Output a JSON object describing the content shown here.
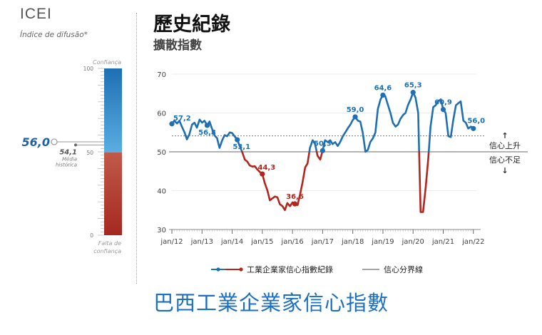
{
  "left_panel": {
    "title": "ICEI",
    "subtitle": "Índice de difusão*",
    "gauge": {
      "top_label": "Confiança",
      "bottom_label_1": "Falta de",
      "bottom_label_2": "confiança",
      "ticks": [
        "100",
        "50",
        "0"
      ],
      "current_value": 56.0,
      "current_label": "56,0",
      "historical_value": 54.1,
      "historical_label": "54,1",
      "historical_caption_1": "Média",
      "historical_caption_2": "histórica",
      "colors": {
        "high": "#1e6fb3",
        "high_light": "#5aaee0",
        "low": "#c05a4a",
        "low_dark": "#a52821"
      }
    }
  },
  "chart_title": "歷史紀錄",
  "chart_subtitle": "擴散指數",
  "bottom_caption": "巴西工業企業家信心指數",
  "chart_data": {
    "type": "line",
    "ylim": [
      30,
      70
    ],
    "yticks": [
      30,
      40,
      50,
      60,
      70
    ],
    "xlim": [
      2012.0,
      2022.1
    ],
    "xticks": [
      {
        "label": "jan/12",
        "x": 2012.0
      },
      {
        "label": "jan/13",
        "x": 2013.0
      },
      {
        "label": "jan/14",
        "x": 2014.0
      },
      {
        "label": "jan/15",
        "x": 2015.0
      },
      {
        "label": "jan/16",
        "x": 2016.0
      },
      {
        "label": "jan/17",
        "x": 2017.0
      },
      {
        "label": "jan/18",
        "x": 2018.0
      },
      {
        "label": "jan/19",
        "x": 2019.0
      },
      {
        "label": "jan/20",
        "x": 2020.0
      },
      {
        "label": "jan/21",
        "x": 2021.0
      },
      {
        "label": "jan/22",
        "x": 2022.0
      }
    ],
    "threshold": 50,
    "historical_average": 54.1,
    "above_label": "信心上升",
    "below_label": "信心不足",
    "series": [
      {
        "name": "工業企業家信心指數紀錄",
        "color_above": "#1e6fb3",
        "color_below": "#b3261e",
        "points": [
          [
            2012.0,
            57.2
          ],
          [
            2012.08,
            58.0
          ],
          [
            2012.17,
            57.3
          ],
          [
            2012.25,
            58.0
          ],
          [
            2012.33,
            56.5
          ],
          [
            2012.42,
            55.0
          ],
          [
            2012.5,
            53.2
          ],
          [
            2012.58,
            54.5
          ],
          [
            2012.67,
            57.0
          ],
          [
            2012.75,
            57.5
          ],
          [
            2012.83,
            56.2
          ],
          [
            2012.92,
            58.3
          ],
          [
            2013.0,
            57.5
          ],
          [
            2013.08,
            58.0
          ],
          [
            2013.17,
            56.8
          ],
          [
            2013.25,
            57.8
          ],
          [
            2013.33,
            56.0
          ],
          [
            2013.42,
            54.2
          ],
          [
            2013.5,
            53.5
          ],
          [
            2013.58,
            51.0
          ],
          [
            2013.67,
            53.0
          ],
          [
            2013.75,
            54.3
          ],
          [
            2013.83,
            54.0
          ],
          [
            2013.92,
            55.0
          ],
          [
            2014.0,
            54.8
          ],
          [
            2014.08,
            54.0
          ],
          [
            2014.17,
            53.1
          ],
          [
            2014.25,
            51.5
          ],
          [
            2014.33,
            50.0
          ],
          [
            2014.42,
            48.0
          ],
          [
            2014.5,
            47.5
          ],
          [
            2014.58,
            46.5
          ],
          [
            2014.67,
            46.2
          ],
          [
            2014.75,
            46.3
          ],
          [
            2014.83,
            45.5
          ],
          [
            2014.92,
            44.8
          ],
          [
            2015.0,
            44.3
          ],
          [
            2015.08,
            42.0
          ],
          [
            2015.17,
            40.0
          ],
          [
            2015.25,
            37.5
          ],
          [
            2015.33,
            38.0
          ],
          [
            2015.42,
            38.5
          ],
          [
            2015.5,
            38.3
          ],
          [
            2015.58,
            36.5
          ],
          [
            2015.67,
            36.0
          ],
          [
            2015.75,
            35.0
          ],
          [
            2015.83,
            36.8
          ],
          [
            2015.92,
            36.0
          ],
          [
            2016.0,
            37.0
          ],
          [
            2016.08,
            36.6
          ],
          [
            2016.17,
            36.3
          ],
          [
            2016.25,
            39.0
          ],
          [
            2016.33,
            42.0
          ],
          [
            2016.42,
            46.0
          ],
          [
            2016.5,
            47.0
          ],
          [
            2016.58,
            51.0
          ],
          [
            2016.67,
            53.0
          ],
          [
            2016.75,
            52.0
          ],
          [
            2016.83,
            49.0
          ],
          [
            2016.92,
            48.0
          ],
          [
            2017.0,
            50.3
          ],
          [
            2017.08,
            53.0
          ],
          [
            2017.17,
            52.5
          ],
          [
            2017.25,
            53.0
          ],
          [
            2017.33,
            52.0
          ],
          [
            2017.42,
            52.5
          ],
          [
            2017.5,
            51.5
          ],
          [
            2017.58,
            52.5
          ],
          [
            2017.67,
            54.0
          ],
          [
            2017.75,
            55.0
          ],
          [
            2017.83,
            56.0
          ],
          [
            2017.92,
            57.0
          ],
          [
            2018.0,
            58.2
          ],
          [
            2018.08,
            59.0
          ],
          [
            2018.17,
            58.0
          ],
          [
            2018.25,
            57.8
          ],
          [
            2018.33,
            55.0
          ],
          [
            2018.42,
            50.0
          ],
          [
            2018.5,
            50.5
          ],
          [
            2018.58,
            52.5
          ],
          [
            2018.67,
            53.5
          ],
          [
            2018.75,
            55.0
          ],
          [
            2018.83,
            61.0
          ],
          [
            2018.92,
            63.5
          ],
          [
            2019.0,
            64.6
          ],
          [
            2019.08,
            64.3
          ],
          [
            2019.17,
            62.0
          ],
          [
            2019.25,
            60.0
          ],
          [
            2019.33,
            57.5
          ],
          [
            2019.42,
            56.5
          ],
          [
            2019.5,
            57.0
          ],
          [
            2019.58,
            58.5
          ],
          [
            2019.67,
            59.5
          ],
          [
            2019.75,
            60.0
          ],
          [
            2019.83,
            62.0
          ],
          [
            2019.92,
            63.5
          ],
          [
            2020.0,
            65.3
          ],
          [
            2020.08,
            64.0
          ],
          [
            2020.17,
            60.0
          ],
          [
            2020.25,
            34.5
          ],
          [
            2020.33,
            34.5
          ],
          [
            2020.42,
            41.0
          ],
          [
            2020.5,
            48.0
          ],
          [
            2020.58,
            56.5
          ],
          [
            2020.67,
            61.5
          ],
          [
            2020.75,
            62.0
          ],
          [
            2020.83,
            63.0
          ],
          [
            2020.92,
            63.5
          ],
          [
            2021.0,
            60.9
          ],
          [
            2021.08,
            60.0
          ],
          [
            2021.17,
            54.0
          ],
          [
            2021.25,
            53.8
          ],
          [
            2021.33,
            58.0
          ],
          [
            2021.42,
            62.0
          ],
          [
            2021.5,
            62.5
          ],
          [
            2021.58,
            63.0
          ],
          [
            2021.67,
            58.0
          ],
          [
            2021.75,
            57.5
          ],
          [
            2021.83,
            56.0
          ],
          [
            2021.92,
            56.5
          ],
          [
            2022.0,
            56.0
          ]
        ],
        "labels": [
          {
            "x": 2012.0,
            "y": 57.2,
            "text": "57,2"
          },
          {
            "x": 2013.17,
            "y": 56.8,
            "text": "56,8"
          },
          {
            "x": 2014.17,
            "y": 53.1,
            "text": "53,1"
          },
          {
            "x": 2015.0,
            "y": 44.3,
            "text": "44,3"
          },
          {
            "x": 2016.08,
            "y": 36.6,
            "text": "36,6"
          },
          {
            "x": 2017.0,
            "y": 50.3,
            "text": "50,3"
          },
          {
            "x": 2018.08,
            "y": 59.0,
            "text": "59,0"
          },
          {
            "x": 2019.0,
            "y": 64.6,
            "text": "64,6"
          },
          {
            "x": 2020.0,
            "y": 65.3,
            "text": "65,3"
          },
          {
            "x": 2021.0,
            "y": 60.9,
            "text": "60,9"
          },
          {
            "x": 2022.0,
            "y": 56.0,
            "text": "56,0"
          }
        ]
      }
    ],
    "legend": [
      {
        "name": "工業企業家信心指數紀錄",
        "type": "series"
      },
      {
        "name": "信心分界線",
        "type": "threshold"
      }
    ]
  }
}
